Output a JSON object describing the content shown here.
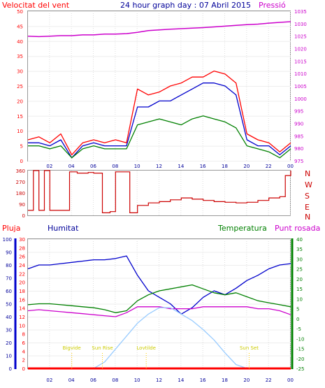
{
  "header": {
    "wind_speed_label": "Velocitat del vent",
    "title": "24 hour graph day : 07 Abril 2015",
    "pressure_label": "Pressió"
  },
  "lower_header": {
    "rain_label": "Pluja",
    "humidity_label": "Humitat",
    "temperature_label": "Temperatura",
    "dewpoint_label": "Punt rosada"
  },
  "compass": [
    "N",
    "W",
    "S",
    "E",
    "N"
  ],
  "events": [
    {
      "label": "Bigvide",
      "hour": 4.0
    },
    {
      "label": "Sun Rise",
      "hour": 6.8
    },
    {
      "label": "Lovtilde",
      "hour": 10.8
    },
    {
      "label": "Sun Set",
      "hour": 20.2
    }
  ],
  "colors": {
    "wind": "#ff0000",
    "gust": "#0000cc",
    "wind_avg": "#008000",
    "pressure": "#cc00cc",
    "direction": "#cc0000",
    "rain": "#ff0000",
    "humidity": "#0000cc",
    "temperature": "#008000",
    "dewpoint": "#cc00cc",
    "solar": "#99ccff",
    "frame": "#999999"
  },
  "chart_data": [
    {
      "type": "line",
      "title": "24 hour graph day : 07 Abril 2015",
      "xlabel": "",
      "x_ticks": [
        "02",
        "04",
        "06",
        "08",
        "10",
        "12",
        "14",
        "16",
        "18",
        "20",
        "22",
        "00"
      ],
      "y_left_label": "Velocitat del vent",
      "y_left_range": [
        0,
        50
      ],
      "y_left_ticks": [
        0,
        5,
        10,
        15,
        20,
        25,
        30,
        35,
        40,
        45,
        50
      ],
      "y_right_label": "Pressió",
      "y_right_range": [
        975,
        1035
      ],
      "y_right_ticks": [
        975,
        980,
        985,
        990,
        995,
        1000,
        1005,
        1010,
        1015,
        1020,
        1025,
        1030,
        1035
      ],
      "x": [
        0,
        1,
        2,
        3,
        4,
        5,
        6,
        7,
        8,
        9,
        10,
        11,
        12,
        13,
        14,
        15,
        16,
        17,
        18,
        19,
        20,
        21,
        22,
        23,
        24
      ],
      "series": [
        {
          "name": "",
          "axis": "left",
          "values": [
            7,
            8,
            6,
            9,
            2,
            6,
            7,
            6,
            7,
            6,
            24,
            22,
            23,
            25,
            26,
            28,
            28,
            30,
            29,
            26,
            9,
            7,
            6,
            3,
            6
          ]
        },
        {
          "name": "",
          "axis": "left",
          "values": [
            6,
            6,
            5,
            7,
            1,
            5,
            6,
            5,
            5,
            5,
            18,
            18,
            20,
            20,
            22,
            24,
            26,
            26,
            25,
            22,
            7,
            5,
            5,
            2,
            5
          ]
        },
        {
          "name": "",
          "axis": "left",
          "values": [
            5,
            5,
            4,
            5,
            1,
            4,
            5,
            4,
            4,
            4,
            12,
            13,
            14,
            13,
            12,
            14,
            15,
            14,
            13,
            11,
            5,
            4,
            3,
            1,
            4
          ]
        },
        {
          "name": "",
          "axis": "right",
          "values": [
            1025,
            1024.8,
            1025,
            1025.2,
            1025.2,
            1025.5,
            1025.5,
            1025.8,
            1025.8,
            1026,
            1026.5,
            1027.2,
            1027.5,
            1027.8,
            1028,
            1028.2,
            1028.4,
            1028.7,
            1029,
            1029.3,
            1029.6,
            1029.8,
            1030.2,
            1030.5,
            1030.8
          ]
        }
      ]
    },
    {
      "type": "line",
      "x_ticks": [
        "02",
        "04",
        "06",
        "08",
        "10",
        "12",
        "14",
        "16",
        "18",
        "20",
        "22",
        "00"
      ],
      "y_range": [
        0,
        360
      ],
      "y_ticks": [
        0,
        90,
        180,
        270,
        360
      ],
      "x": [
        0,
        0.5,
        1,
        1.5,
        2,
        3,
        3.8,
        4.5,
        5.5,
        6,
        6.8,
        7.5,
        8,
        9,
        9.3,
        10,
        11,
        12,
        13,
        14,
        15,
        16,
        17,
        18,
        19,
        20,
        21,
        22,
        23,
        23.5,
        24
      ],
      "series": [
        {
          "name": "",
          "values": [
            40,
            360,
            40,
            360,
            40,
            40,
            350,
            340,
            345,
            340,
            20,
            30,
            350,
            350,
            20,
            80,
            100,
            110,
            125,
            140,
            130,
            120,
            110,
            105,
            100,
            105,
            120,
            140,
            150,
            320,
            360
          ]
        }
      ]
    },
    {
      "type": "line",
      "x_ticks": [
        "02",
        "04",
        "06",
        "08",
        "10",
        "12",
        "14",
        "16",
        "18",
        "20",
        "22",
        "00"
      ],
      "y_rain_label": "Pluja",
      "y_rain_range": [
        0,
        30
      ],
      "y_rain_ticks": [
        0,
        2,
        4,
        6,
        8,
        10,
        12,
        14,
        16,
        18,
        20,
        22,
        24,
        26,
        28,
        30
      ],
      "y_humidity_label": "Humitat",
      "y_humidity_range": [
        0,
        100
      ],
      "y_humidity_ticks": [
        0,
        10,
        20,
        30,
        40,
        50,
        60,
        70,
        80,
        90,
        100
      ],
      "y_temperature_label": "Temperatura",
      "y_temperature_range": [
        -25,
        40
      ],
      "y_temperature_ticks": [
        -25,
        -20,
        -15,
        -10,
        -5,
        0,
        5,
        10,
        15,
        20,
        25,
        30,
        35,
        40
      ],
      "x": [
        0,
        1,
        2,
        3,
        4,
        5,
        6,
        7,
        8,
        9,
        10,
        11,
        12,
        13,
        14,
        15,
        16,
        17,
        18,
        19,
        20,
        21,
        22,
        23,
        24
      ],
      "series": [
        {
          "name": "Humitat",
          "axis": "humidity",
          "values": [
            77,
            80,
            80,
            81,
            82,
            83,
            84,
            84,
            85,
            87,
            72,
            60,
            55,
            50,
            42,
            47,
            55,
            60,
            57,
            62,
            68,
            72,
            77,
            80,
            81
          ]
        },
        {
          "name": "Temperatura",
          "axis": "temperature",
          "values": [
            7,
            7.5,
            7.5,
            7,
            6.5,
            6,
            5.5,
            4.5,
            3,
            4,
            9,
            12,
            14,
            15,
            16,
            17,
            15,
            13,
            12,
            13,
            11,
            9,
            8,
            7,
            6
          ]
        },
        {
          "name": "Punt rosada",
          "axis": "temperature",
          "values": [
            4,
            4.5,
            4,
            3.5,
            3,
            2.5,
            2,
            1.5,
            1,
            3,
            6,
            6,
            6,
            5,
            5,
            5,
            6,
            6,
            6,
            6,
            6,
            5,
            5,
            4,
            2
          ]
        },
        {
          "name": "",
          "axis": "humidity",
          "values": [
            0,
            0,
            0,
            0,
            0,
            0,
            0,
            5,
            15,
            25,
            35,
            42,
            47,
            47,
            42,
            37,
            30,
            22,
            12,
            3,
            0,
            0,
            0,
            0,
            0
          ]
        },
        {
          "name": "Pluja",
          "axis": "rain",
          "values": [
            0,
            0,
            0,
            0,
            0,
            0,
            0,
            0,
            0,
            0,
            0,
            0,
            0,
            0,
            0,
            0,
            0,
            0,
            0,
            0,
            0,
            0,
            0,
            0,
            0
          ]
        }
      ]
    }
  ]
}
